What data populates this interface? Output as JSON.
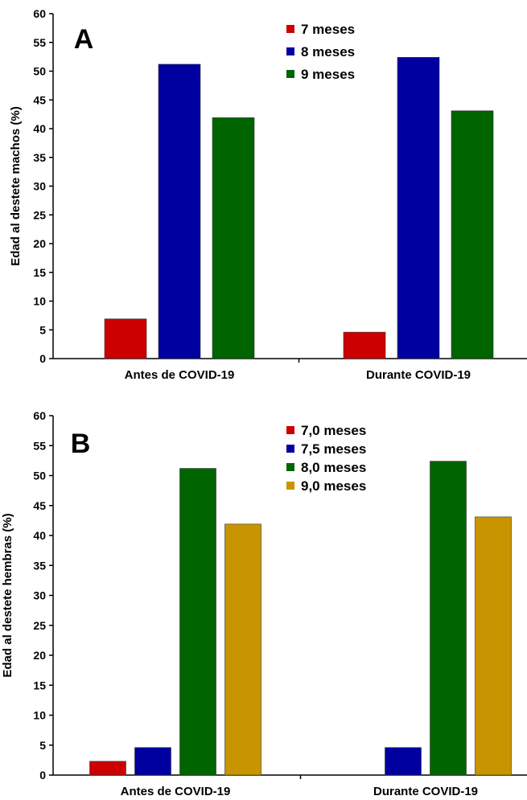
{
  "chart_data": [
    {
      "type": "bar",
      "panel_label": "A",
      "ylabel": "Edad al destete machos (%)",
      "xlabel": "",
      "ylim": [
        0,
        60
      ],
      "yticks": [
        0,
        5,
        10,
        15,
        20,
        25,
        30,
        35,
        40,
        45,
        50,
        55,
        60
      ],
      "categories": [
        "Antes de COVID-19",
        "Durante COVID-19"
      ],
      "legend_position": "top-right",
      "grid": false,
      "series": [
        {
          "name": "7 meses",
          "color": "#cc0000",
          "values": [
            6.9,
            4.6
          ]
        },
        {
          "name": "8 meses",
          "color": "#0000a0",
          "values": [
            51.2,
            52.4
          ]
        },
        {
          "name": "9 meses",
          "color": "#006400",
          "values": [
            41.9,
            43.1
          ]
        }
      ]
    },
    {
      "type": "bar",
      "panel_label": "B",
      "ylabel": "Edad al destete hembras (%)",
      "xlabel": "",
      "ylim": [
        0,
        60
      ],
      "yticks": [
        0,
        5,
        10,
        15,
        20,
        25,
        30,
        35,
        40,
        45,
        50,
        55,
        60
      ],
      "categories": [
        "Antes de COVID-19",
        "Durante COVID-19"
      ],
      "legend_position": "top-right",
      "grid": false,
      "series": [
        {
          "name": "7,0 meses",
          "color": "#cc0000",
          "values": [
            2.3,
            0
          ]
        },
        {
          "name": "7,5 meses",
          "color": "#0000a0",
          "values": [
            4.6,
            4.6
          ]
        },
        {
          "name": "8,0 meses",
          "color": "#006400",
          "values": [
            51.2,
            52.4
          ]
        },
        {
          "name": "9,0 meses",
          "color": "#c89400",
          "values": [
            41.9,
            43.1
          ]
        }
      ]
    }
  ]
}
